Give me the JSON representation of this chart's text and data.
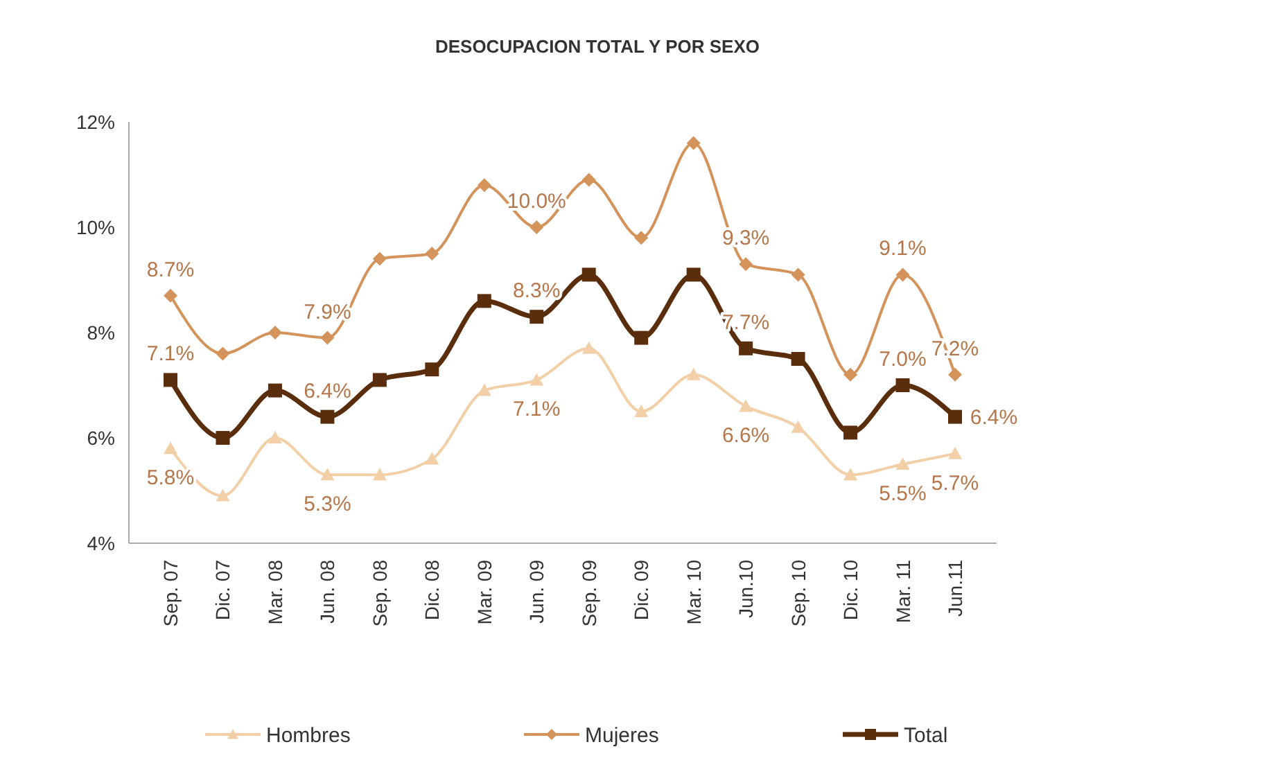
{
  "chart_data": {
    "type": "line",
    "title": "DESOCUPACION TOTAL Y POR SEXO",
    "categories": [
      "Sep. 07",
      "Dic. 07",
      "Mar. 08",
      "Jun. 08",
      "Sep. 08",
      "Dic. 08",
      "Mar. 09",
      "Jun. 09",
      "Sep. 09",
      "Dic. 09",
      "Mar. 10",
      "Jun.10",
      "Sep. 10",
      "Dic. 10",
      "Mar. 11",
      "Jun.11"
    ],
    "series": [
      {
        "name": "Hombres",
        "color": "#f3cfa8",
        "marker": "triangle",
        "values": [
          5.8,
          4.9,
          6.0,
          5.3,
          5.3,
          5.6,
          6.9,
          7.1,
          7.7,
          6.5,
          7.2,
          6.6,
          6.2,
          5.3,
          5.5,
          5.7
        ],
        "value_labels": [
          "5.8%",
          null,
          null,
          "5.3%",
          null,
          null,
          null,
          "7.1%",
          null,
          null,
          null,
          "6.6%",
          null,
          null,
          "5.5%",
          "5.7%"
        ]
      },
      {
        "name": "Mujeres",
        "color": "#d4935a",
        "marker": "diamond",
        "values": [
          8.7,
          7.6,
          8.0,
          7.9,
          9.4,
          9.5,
          10.8,
          10.0,
          10.9,
          9.8,
          11.6,
          9.3,
          9.1,
          7.2,
          9.1,
          7.2
        ],
        "value_labels": [
          "8.7%",
          null,
          null,
          "7.9%",
          null,
          null,
          null,
          "10.0%",
          null,
          null,
          null,
          "9.3%",
          null,
          null,
          "9.1%",
          "7.2%"
        ]
      },
      {
        "name": "Total",
        "color": "#5a2d0c",
        "marker": "square",
        "values": [
          7.1,
          6.0,
          6.9,
          6.4,
          7.1,
          7.3,
          8.6,
          8.3,
          9.1,
          7.9,
          9.1,
          7.7,
          7.5,
          6.1,
          7.0,
          6.4
        ],
        "value_labels": [
          "7.1%",
          null,
          null,
          "6.4%",
          null,
          null,
          null,
          "8.3%",
          null,
          null,
          null,
          "7.7%",
          null,
          null,
          "7.0%",
          "6.4%"
        ]
      }
    ],
    "ylim": [
      4,
      12
    ],
    "yticks": [
      {
        "value": 4,
        "label": "4%"
      },
      {
        "value": 6,
        "label": "6%"
      },
      {
        "value": 8,
        "label": "8%"
      },
      {
        "value": 10,
        "label": "10%"
      },
      {
        "value": 12,
        "label": "12%"
      }
    ],
    "grid": false,
    "legend": "bottom"
  }
}
